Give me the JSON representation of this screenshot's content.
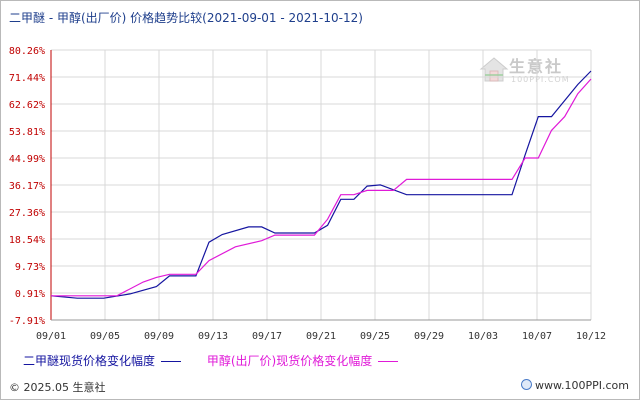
{
  "title": "二甲醚 - 甲醇(出厂价) 价格趋势比较(2021-09-01 - 2021-10-12)",
  "watermark": {
    "brand": "生意社",
    "url": "100PPI.COM"
  },
  "footer": {
    "copyright": "© 2025.05 生意社",
    "site": "www.100PPI.com"
  },
  "colors": {
    "axis": "#c00000",
    "grid": "#d8d8d8",
    "series_dme": "#1515a0",
    "series_methanol": "#e01ad8"
  },
  "legend": [
    {
      "label": "二甲醚现货价格变化幅度",
      "color": "#1515a0"
    },
    {
      "label": "甲醇(出厂价)现货价格变化幅度",
      "color": "#e01ad8"
    }
  ],
  "chart_data": {
    "type": "line",
    "title": "二甲醚 - 甲醇(出厂价) 价格趋势比较(2021-09-01 - 2021-10-12)",
    "xlabel": "",
    "ylabel": "",
    "x_ticks": [
      "09/01",
      "09/05",
      "09/09",
      "09/13",
      "09/17",
      "09/21",
      "09/25",
      "09/29",
      "10/03",
      "10/07",
      "10/12"
    ],
    "y_ticks": [
      "-7.91%",
      "0.91%",
      "9.73%",
      "18.54%",
      "27.36%",
      "36.17%",
      "44.99%",
      "53.81%",
      "62.62%",
      "71.44%",
      "80.26%"
    ],
    "ylim": [
      -7.91,
      80.26
    ],
    "xlim": [
      "2021-09-01",
      "2021-10-12"
    ],
    "grid": true,
    "legend_position": "bottom",
    "series": [
      {
        "name": "二甲醚现货价格变化幅度",
        "color": "#1515a0",
        "points": [
          [
            "2021-09-01",
            0
          ],
          [
            "2021-09-03",
            -0.8
          ],
          [
            "2021-09-05",
            -0.8
          ],
          [
            "2021-09-07",
            0.6
          ],
          [
            "2021-09-09",
            3.0
          ],
          [
            "2021-09-10",
            6.5
          ],
          [
            "2021-09-12",
            6.5
          ],
          [
            "2021-09-13",
            17.5
          ],
          [
            "2021-09-14",
            20.0
          ],
          [
            "2021-09-16",
            22.5
          ],
          [
            "2021-09-17",
            22.5
          ],
          [
            "2021-09-18",
            20.5
          ],
          [
            "2021-09-21",
            20.5
          ],
          [
            "2021-09-22",
            23.0
          ],
          [
            "2021-09-23",
            31.5
          ],
          [
            "2021-09-24",
            31.5
          ],
          [
            "2021-09-25",
            35.8
          ],
          [
            "2021-09-26",
            36.2
          ],
          [
            "2021-09-28",
            33.0
          ],
          [
            "2021-10-06",
            33.0
          ],
          [
            "2021-10-07",
            46.0
          ],
          [
            "2021-10-08",
            58.5
          ],
          [
            "2021-10-09",
            58.5
          ],
          [
            "2021-10-11",
            69.0
          ],
          [
            "2021-10-12",
            73.4
          ]
        ]
      },
      {
        "name": "甲醇(出厂价)现货价格变化幅度",
        "color": "#e01ad8",
        "points": [
          [
            "2021-09-01",
            0
          ],
          [
            "2021-09-06",
            0
          ],
          [
            "2021-09-08",
            4.5
          ],
          [
            "2021-09-09",
            6.0
          ],
          [
            "2021-09-10",
            7.0
          ],
          [
            "2021-09-12",
            7.0
          ],
          [
            "2021-09-13",
            11.5
          ],
          [
            "2021-09-15",
            16.0
          ],
          [
            "2021-09-17",
            18.0
          ],
          [
            "2021-09-18",
            19.8
          ],
          [
            "2021-09-21",
            19.8
          ],
          [
            "2021-09-22",
            25.0
          ],
          [
            "2021-09-23",
            33.0
          ],
          [
            "2021-09-24",
            33.0
          ],
          [
            "2021-09-25",
            34.4
          ],
          [
            "2021-09-27",
            34.4
          ],
          [
            "2021-09-28",
            38.0
          ],
          [
            "2021-10-06",
            38.0
          ],
          [
            "2021-10-07",
            45.0
          ],
          [
            "2021-10-08",
            45.0
          ],
          [
            "2021-10-09",
            54.0
          ],
          [
            "2021-10-10",
            58.5
          ],
          [
            "2021-10-11",
            66.0
          ],
          [
            "2021-10-12",
            70.8
          ]
        ]
      }
    ]
  }
}
